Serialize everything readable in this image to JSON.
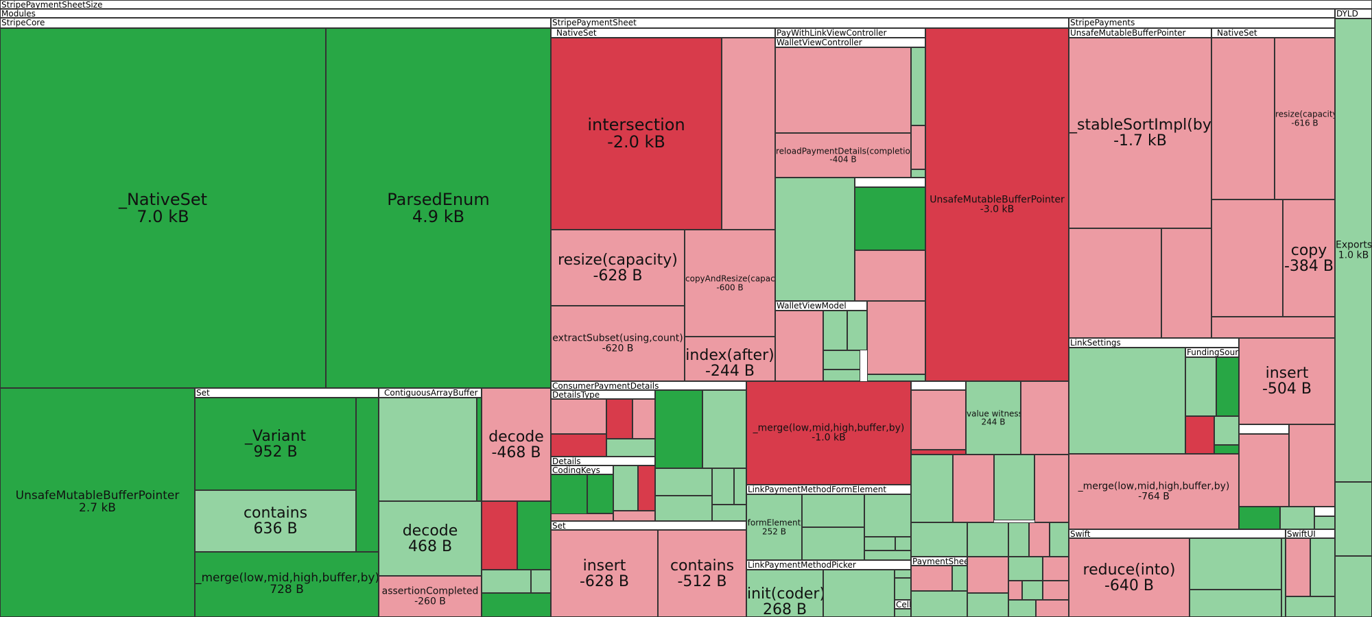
{
  "headers": {
    "root": "StripePaymentSheetSize",
    "modules": "Modules",
    "stripe_core": "StripeCore",
    "set_core": "Set",
    "contiguous_array_buffer": "_ContiguousArrayBuffer",
    "stripe_payment_sheet": "StripePaymentSheet",
    "native_set_sheet": "_NativeSet",
    "pay_with_link_view_controller": "PayWithLinkViewController",
    "wallet_view_controller": "WalletViewController",
    "wallet_view_model": "WalletViewModel",
    "consumer_payment_details": "ConsumerPaymentDetails",
    "details_type": "DetailsType",
    "details": "Details",
    "coding_keys": "CodingKeys",
    "set_sheet": "Set",
    "link_payment_method_form_element": "LinkPaymentMethodFormElement",
    "link_payment_method_picker": "LinkPaymentMethodPicker",
    "payment_sheet": "PaymentSheet",
    "cell": "Cell",
    "stripe_payments": "StripePayments",
    "unsafe_mutable_buffer_pointer_payments": "UnsafeMutableBufferPointer",
    "native_set_payments": "_NativeSet",
    "link_settings": "LinkSettings",
    "funding_source": "FundingSource",
    "swift": "Swift",
    "swift_ui": "SwiftUI",
    "dyld": "DYLD"
  },
  "labels": {
    "core_native_set": {
      "name": "_NativeSet",
      "size": "7.0 kB"
    },
    "core_parsed_enum": {
      "name": "ParsedEnum",
      "size": "4.9 kB"
    },
    "core_unsafe_mutable_buffer_pointer": {
      "name": "UnsafeMutableBufferPointer",
      "size": "2.7 kB"
    },
    "core_variant": {
      "name": "_Variant",
      "size": "952 B"
    },
    "core_contains": {
      "name": "contains",
      "size": "636 B"
    },
    "core_merge": {
      "name": "_merge(low,mid,high,buffer,by)",
      "size": "728 B"
    },
    "core_decode_buffer": {
      "name": "decode",
      "size": "468 B"
    },
    "core_assertion_completed": {
      "name": "assertionCompleted",
      "size": "-260 B"
    },
    "core_decode": {
      "name": "decode",
      "size": "-468 B"
    },
    "sheet_intersection": {
      "name": "intersection",
      "size": "-2.0 kB"
    },
    "sheet_resize": {
      "name": "resize(capacity)",
      "size": "-628 B"
    },
    "sheet_copy_and_resize": {
      "name": "copyAndResize(capacity)",
      "size": "-600 B"
    },
    "sheet_extract_subset": {
      "name": "extractSubset(using,count)",
      "size": "-620 B"
    },
    "sheet_index_after": {
      "name": "index(after)",
      "size": "-244 B"
    },
    "sheet_reload_payment_details": {
      "name": "reloadPaymentDetails(completion)",
      "size": "-404 B"
    },
    "sheet_unsafe_mutable_buffer_pointer": {
      "name": "UnsafeMutableBufferPointer",
      "size": "-3.0 kB"
    },
    "sheet_merge": {
      "name": "_merge(low,mid,high,buffer,by)",
      "size": "-1.0 kB"
    },
    "sheet_value_witness": {
      "name": "value witness",
      "size": "244 B"
    },
    "sheet_form_element": {
      "name": "formElement",
      "size": "252 B"
    },
    "sheet_insert": {
      "name": "insert",
      "size": "-628 B"
    },
    "sheet_contains": {
      "name": "contains",
      "size": "-512 B"
    },
    "sheet_init_coder": {
      "name": "init(coder)",
      "size": "268 B"
    },
    "payments_stable_sort": {
      "name": "_stableSortImpl(by)",
      "size": "-1.7 kB"
    },
    "payments_resize": {
      "name": "resize(capacity)",
      "size": "-616 B"
    },
    "payments_copy": {
      "name": "copy",
      "size": "-384 B"
    },
    "payments_insert": {
      "name": "insert",
      "size": "-504 B"
    },
    "payments_merge": {
      "name": "_merge(low,mid,high,buffer,by)",
      "size": "-764 B"
    },
    "payments_reduce_into": {
      "name": "reduce(into)",
      "size": "-640 B"
    },
    "dyld_exports": {
      "name": "Exports",
      "size": "1.0 kB"
    }
  }
}
